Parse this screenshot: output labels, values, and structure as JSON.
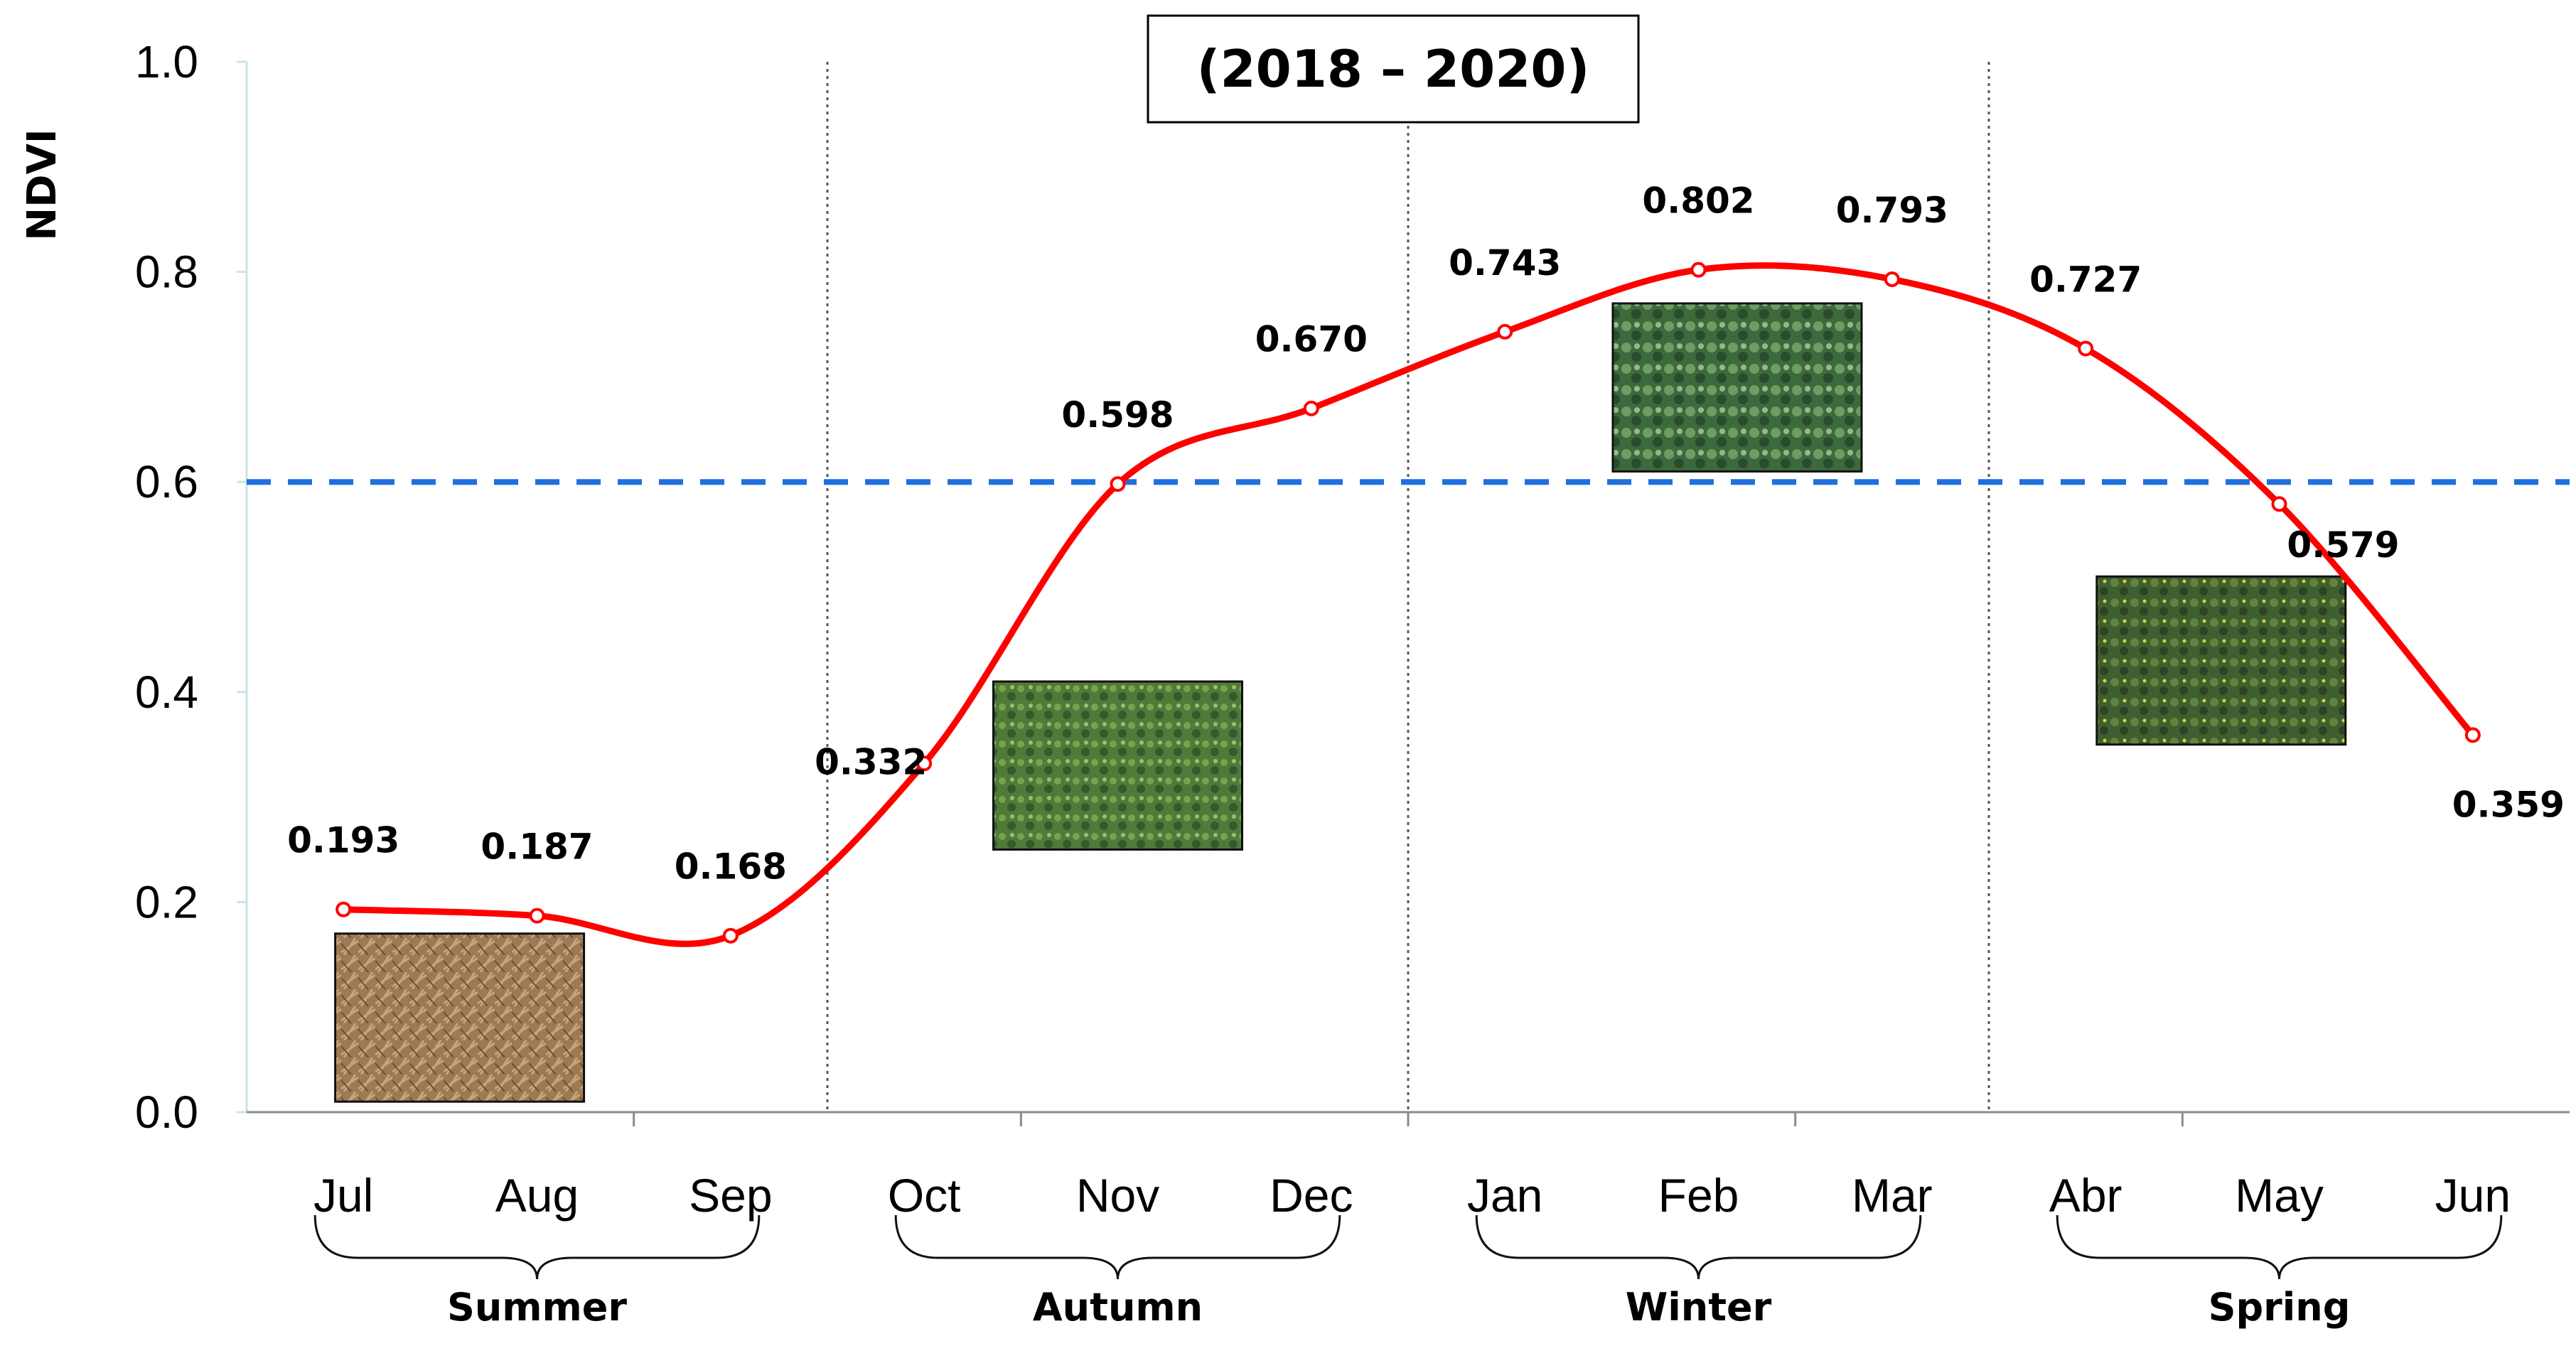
{
  "chart_data": {
    "type": "line",
    "title": "(2018 – 2020)",
    "ylabel": "NDVI",
    "xlabel": "",
    "ylim": [
      0,
      1.0
    ],
    "yticks": [
      "0.0",
      "0.2",
      "0.4",
      "0.6",
      "0.8",
      "1.0"
    ],
    "categories": [
      "Jul",
      "Aug",
      "Sep",
      "Oct",
      "Nov",
      "Dec",
      "Jan",
      "Feb",
      "Mar",
      "Abr",
      "May",
      "Jun"
    ],
    "series": [
      {
        "values": [
          0.193,
          0.187,
          0.168,
          0.332,
          0.598,
          0.67,
          0.743,
          0.802,
          0.793,
          0.727,
          0.579,
          0.359
        ],
        "data_labels": [
          "0.193",
          "0.187",
          "0.168",
          "0.332",
          "0.598",
          "0.670",
          "0.743",
          "0.802",
          "0.793",
          "0.727",
          "0.579",
          "0.359"
        ]
      }
    ],
    "reference_line": {
      "value": 0.6,
      "style": "dashed"
    },
    "seasons": [
      "Summer",
      "Autumn",
      "Winter",
      "Spring"
    ],
    "grid": false,
    "legend": "none",
    "colors": {
      "line": "#ff0000",
      "reference": "#1f6fe0",
      "separator": "#555555"
    },
    "photos": [
      "dry-grass-photo",
      "green-pasture-photo",
      "dense-clover-photo",
      "flowering-pasture-photo"
    ]
  }
}
